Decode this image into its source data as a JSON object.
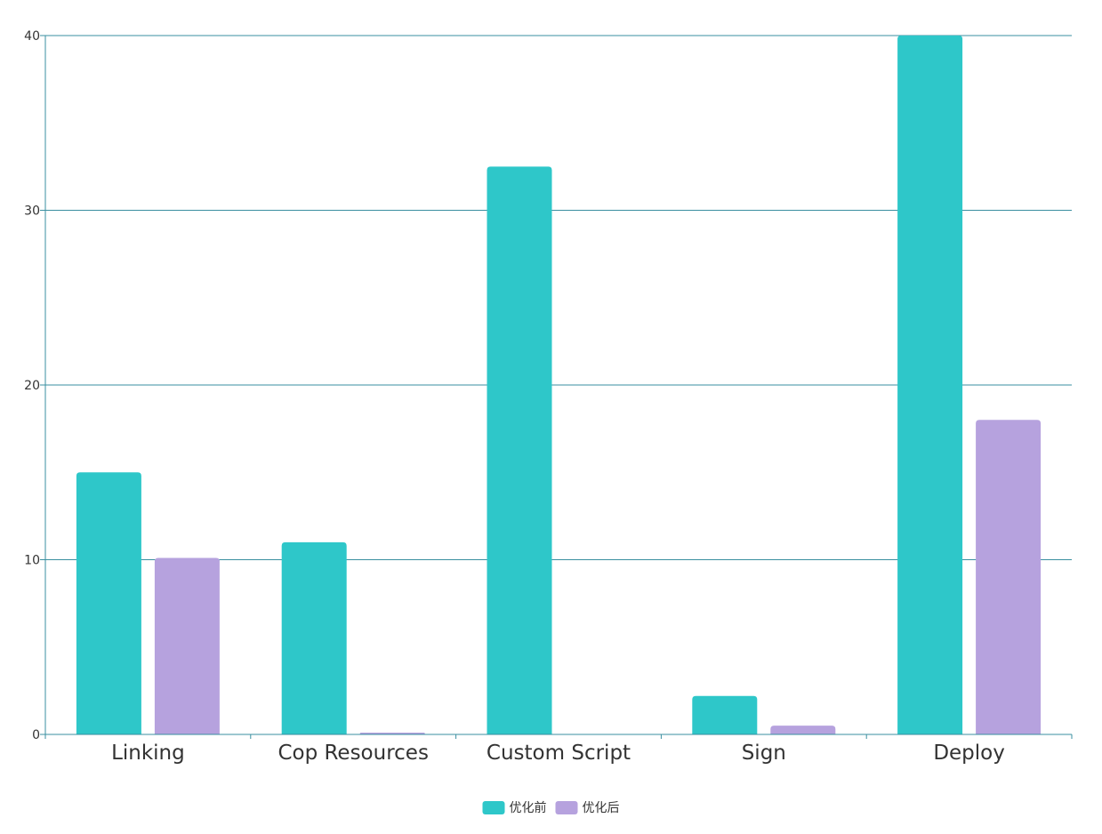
{
  "chart_data": {
    "type": "bar",
    "title": "",
    "xlabel": "",
    "ylabel": "",
    "categories": [
      "Linking",
      "Cop Resources",
      "Custom Script",
      "Sign",
      "Deploy"
    ],
    "series": [
      {
        "name": "优化前",
        "color": "#2ec7c9",
        "values": [
          15,
          11,
          32.5,
          2.2,
          40
        ]
      },
      {
        "name": "优化后",
        "color": "#b6a2de",
        "values": [
          10.1,
          0.1,
          0,
          0.5,
          18
        ]
      }
    ],
    "ylim": [
      0,
      40
    ],
    "yticks": [
      0,
      10,
      20,
      30,
      40
    ],
    "grid": true,
    "legend_position": "bottom-center",
    "axis_color": "#3a8fa0"
  }
}
